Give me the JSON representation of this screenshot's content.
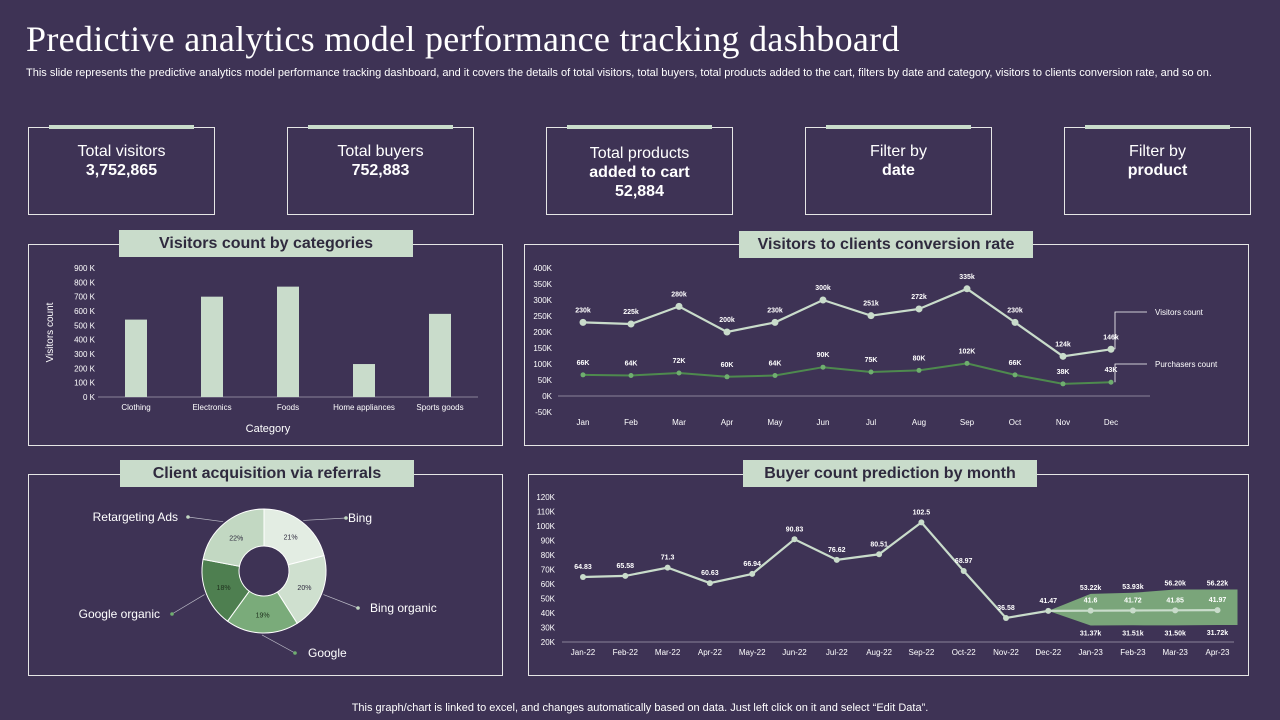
{
  "header": {
    "title": "Predictive analytics model performance tracking dashboard",
    "subtitle": "This slide represents the predictive analytics model performance tracking dashboard, and it covers the details of total visitors, total buyers, total products added to the cart, filters by date and category, visitors to clients conversion rate, and so on."
  },
  "kpis": [
    {
      "line1": "Total visitors",
      "line2": "3,752,865"
    },
    {
      "line1": "Total buyers",
      "line2": "752,883"
    },
    {
      "line1": "Total products",
      "line2": "added to cart",
      "line3": "52,884"
    },
    {
      "line1": "Filter by",
      "line2": "date"
    },
    {
      "line1": "Filter by",
      "line2": "product"
    }
  ],
  "panels": {
    "visitors_by_category": "Visitors count by categories",
    "conversion_rate": "Visitors to clients conversion rate",
    "referrals": "Client acquisition via referrals",
    "buyer_prediction": "Buyer count prediction by month"
  },
  "colors": {
    "background": "#3e3355",
    "accent": "#c9dccb",
    "light_line": "#c9dccb",
    "dark_line": "#4e8a4e",
    "forecast_band": "#7aa57a"
  },
  "chart_data": [
    {
      "type": "bar",
      "title": "Visitors count by categories",
      "categories": [
        "Clothing",
        "Electronics",
        "Foods",
        "Home appliances",
        "Sports goods"
      ],
      "values": [
        540,
        700,
        770,
        230,
        580
      ],
      "ylim": [
        0,
        900
      ],
      "yticks": [
        "0 K",
        "100 K",
        "200 K",
        "300 K",
        "400 K",
        "500 K",
        "600 K",
        "700 K",
        "800 K",
        "900 K"
      ],
      "xlabel": "Category",
      "ylabel": "Visitors count"
    },
    {
      "type": "line",
      "title": "Visitors to clients conversion rate",
      "x": [
        "Jan",
        "Feb",
        "Mar",
        "Apr",
        "May",
        "Jun",
        "Jul",
        "Aug",
        "Sep",
        "Oct",
        "Nov",
        "Dec"
      ],
      "ylim": [
        -50,
        400
      ],
      "yticks": [
        "-50K",
        "0K",
        "50K",
        "100K",
        "150K",
        "200K",
        "250K",
        "300K",
        "350K",
        "400K"
      ],
      "series": [
        {
          "name": "Visitors count",
          "values": [
            230,
            225,
            280,
            200,
            230,
            300,
            251,
            272,
            335,
            230,
            124,
            146
          ],
          "labels": [
            "230k",
            "225k",
            "280k",
            "200k",
            "230k",
            "300k",
            "251k",
            "272k",
            "335k",
            "230k",
            "124k",
            "146k"
          ]
        },
        {
          "name": "Purchasers count",
          "values": [
            66,
            64,
            72,
            60,
            64,
            90,
            75,
            80,
            102,
            66,
            38,
            43
          ],
          "labels": [
            "66K",
            "64K",
            "72K",
            "60K",
            "64K",
            "90K",
            "75K",
            "80K",
            "102K",
            "66K",
            "38K",
            "43K"
          ]
        }
      ]
    },
    {
      "type": "pie",
      "title": "Client acquisition via referrals",
      "slices": [
        {
          "name": "Bing",
          "value": 21,
          "label": "21%",
          "color": "#e3ede3"
        },
        {
          "name": "Bing organic",
          "value": 20,
          "label": "20%",
          "color": "#cfe0cf"
        },
        {
          "name": "Google",
          "value": 19,
          "label": "19%",
          "color": "#7aab7a"
        },
        {
          "name": "Google organic",
          "value": 18,
          "label": "18%",
          "color": "#4e7f50"
        },
        {
          "name": "Retargeting Ads",
          "value": 22,
          "label": "22%",
          "color": "#c2d8c2"
        }
      ]
    },
    {
      "type": "line",
      "title": "Buyer count prediction by month",
      "x": [
        "Jan-22",
        "Feb-22",
        "Mar-22",
        "Apr-22",
        "May-22",
        "Jun-22",
        "Jul-22",
        "Aug-22",
        "Sep-22",
        "Oct-22",
        "Nov-22",
        "Dec-22",
        "Jan-23",
        "Feb-23",
        "Mar-23",
        "Apr-23"
      ],
      "ylim": [
        20,
        120
      ],
      "yticks": [
        "20K",
        "30K",
        "40K",
        "50K",
        "60K",
        "70K",
        "80K",
        "90K",
        "100K",
        "110K",
        "120K"
      ],
      "values": [
        64.83,
        65.58,
        71.3,
        60.63,
        66.94,
        90.83,
        76.62,
        80.51,
        102.5,
        68.97,
        36.58,
        41.47,
        41.6,
        41.72,
        41.85,
        41.97
      ],
      "labels": [
        "64.83",
        "65.58",
        "71.3",
        "60.63",
        "66.94",
        "90.83",
        "76.62",
        "80.51",
        "102.5",
        "68.97",
        "36.58",
        "41.47",
        "41.6",
        "41.72",
        "41.85",
        "41.97"
      ],
      "forecast_start": 11,
      "upper_bound": [
        41.47,
        53.22,
        53.93,
        56.2,
        56.22
      ],
      "lower_bound": [
        41.47,
        31.37,
        31.51,
        31.5,
        31.72
      ],
      "upper_labels": [
        "",
        "53.22k",
        "53.93k",
        "56.20k",
        "56.22k"
      ],
      "lower_labels": [
        "",
        "31.37k",
        "31.51k",
        "31.50k",
        "31.72k"
      ]
    }
  ],
  "footer": "This graph/chart is linked to excel,  and changes automatically based on data. Just left click on it and select “Edit Data”."
}
